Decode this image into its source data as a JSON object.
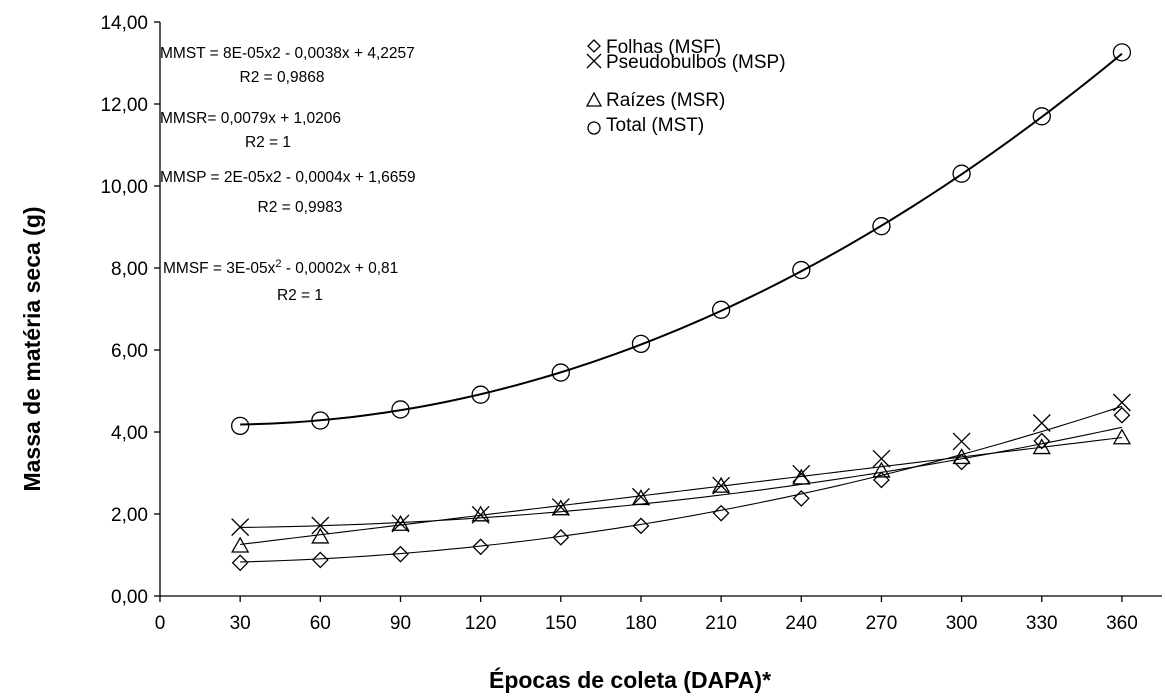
{
  "chart_data": {
    "type": "scatter",
    "xlabel": "Épocas de coleta (DAPA)*",
    "ylabel": "Massa de matéria seca (g)",
    "xlim": [
      0,
      375
    ],
    "ylim": [
      0,
      14
    ],
    "x_ticks": [
      "0",
      "30",
      "60",
      "90",
      "120",
      "150",
      "180",
      "210",
      "240",
      "270",
      "300",
      "330",
      "360"
    ],
    "y_ticks": [
      "0,00",
      "2,00",
      "4,00",
      "6,00",
      "8,00",
      "10,00",
      "12,00",
      "14,00"
    ],
    "grid": false,
    "legend_position": "top-center",
    "x": [
      30,
      60,
      90,
      120,
      150,
      180,
      210,
      240,
      270,
      300,
      330,
      360
    ],
    "series": [
      {
        "name": "Folhas (MSF)",
        "marker": "diamond",
        "values": [
          0.81,
          0.88,
          1.02,
          1.2,
          1.43,
          1.71,
          2.02,
          2.38,
          2.83,
          3.27,
          3.78,
          4.41
        ],
        "trend": [
          3e-05,
          -0.0002,
          0.81
        ]
      },
      {
        "name": "Pseudobulbos (MSP)",
        "marker": "x",
        "values": [
          1.68,
          1.72,
          1.77,
          1.98,
          2.17,
          2.42,
          2.69,
          2.98,
          3.35,
          3.77,
          4.22,
          4.72
        ],
        "trend": [
          2e-05,
          -0.0004,
          1.6659
        ]
      },
      {
        "name": "Raízes (MSR)",
        "marker": "triangle",
        "values": [
          1.22,
          1.44,
          1.75,
          1.98,
          2.13,
          2.38,
          2.68,
          2.88,
          3.05,
          3.38,
          3.62,
          3.86
        ],
        "trend": [
          0,
          0.0079,
          1.0206
        ]
      },
      {
        "name": "Total (MST)",
        "marker": "circle",
        "values": [
          4.15,
          4.28,
          4.55,
          4.91,
          5.45,
          6.15,
          6.98,
          7.95,
          9.02,
          10.3,
          11.7,
          13.26
        ],
        "trend": [
          8e-05,
          -0.0038,
          4.2257
        ]
      }
    ],
    "annotations": [
      {
        "line1": "MMST =  8E-05x2 - 0,0038x + 4,2257",
        "line2": "R2 = 0,9868"
      },
      {
        "line1": "MMSR= 0,0079x + 1,0206",
        "line2": "R2 = 1"
      },
      {
        "line1": "MMSP = 2E-05x2 - 0,0004x + 1,6659",
        "line2": "R2 = 0,9983"
      },
      {
        "line1_pre": "MMSF = 3E-05x",
        "line1_sup": "2",
        "line1_post": " - 0,0002x + 0,81",
        "line2": "R2 = 1"
      }
    ]
  }
}
